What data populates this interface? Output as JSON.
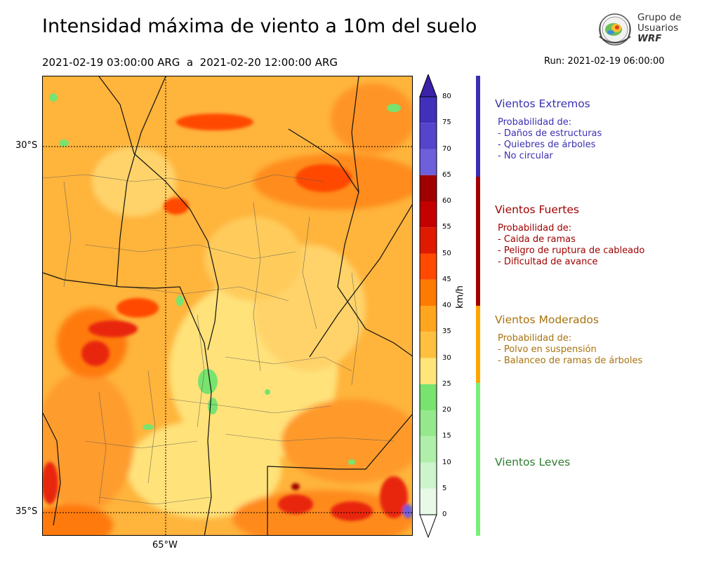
{
  "header": {
    "title": "Intensidad máxima de viento a 10m del suelo",
    "period": "2021-02-19 03:00:00 ARG  a  2021-02-20 12:00:00 ARG",
    "run": "Run: 2021-02-19 06:00:00"
  },
  "logo": {
    "line1": "Grupo de",
    "line2": "Usuarios",
    "line3": "WRF"
  },
  "map": {
    "lat_labels": [
      "30°S",
      "35°S"
    ],
    "lon_labels": [
      "65°W"
    ]
  },
  "colorbar": {
    "unit": "km/h",
    "ticks": [
      "80",
      "75",
      "70",
      "65",
      "60",
      "55",
      "50",
      "45",
      "40",
      "35",
      "30",
      "25",
      "20",
      "15",
      "10",
      "5",
      "0"
    ],
    "colors": [
      "#e8f9e8",
      "#ccf5cc",
      "#b0efaa",
      "#95e98c",
      "#78e36e",
      "#ffe57a",
      "#ffc040",
      "#ffa51e",
      "#ff7a00",
      "#ff4a00",
      "#e01a00",
      "#c40000",
      "#a00000",
      "#6e5fdc",
      "#5544cc",
      "#4130bb",
      "#3b22a8"
    ]
  },
  "categories": [
    {
      "title": "Vientos Extremos",
      "color": "#3b2fb0",
      "desc": [
        "Probabilidad de:",
        "- Daños de estructuras",
        "- Quiebres de árboles",
        "- No circular"
      ]
    },
    {
      "title": "Vientos Fuertes",
      "color": "#a00000",
      "desc": [
        "Probabilidad de:",
        "- Caida de ramas",
        "- Peligro de ruptura de cableado",
        "- Dificultad de avance"
      ]
    },
    {
      "title": "Vientos Moderados",
      "color": "#a8720e",
      "bar_color": "#ffa500",
      "desc": [
        "Probabilidad de:",
        "- Polvo en suspensión",
        "- Balanceo de ramas de árboles"
      ]
    },
    {
      "title": "Vientos Leves",
      "color": "#2e7d32",
      "bar_color": "#78f078",
      "desc": []
    }
  ]
}
